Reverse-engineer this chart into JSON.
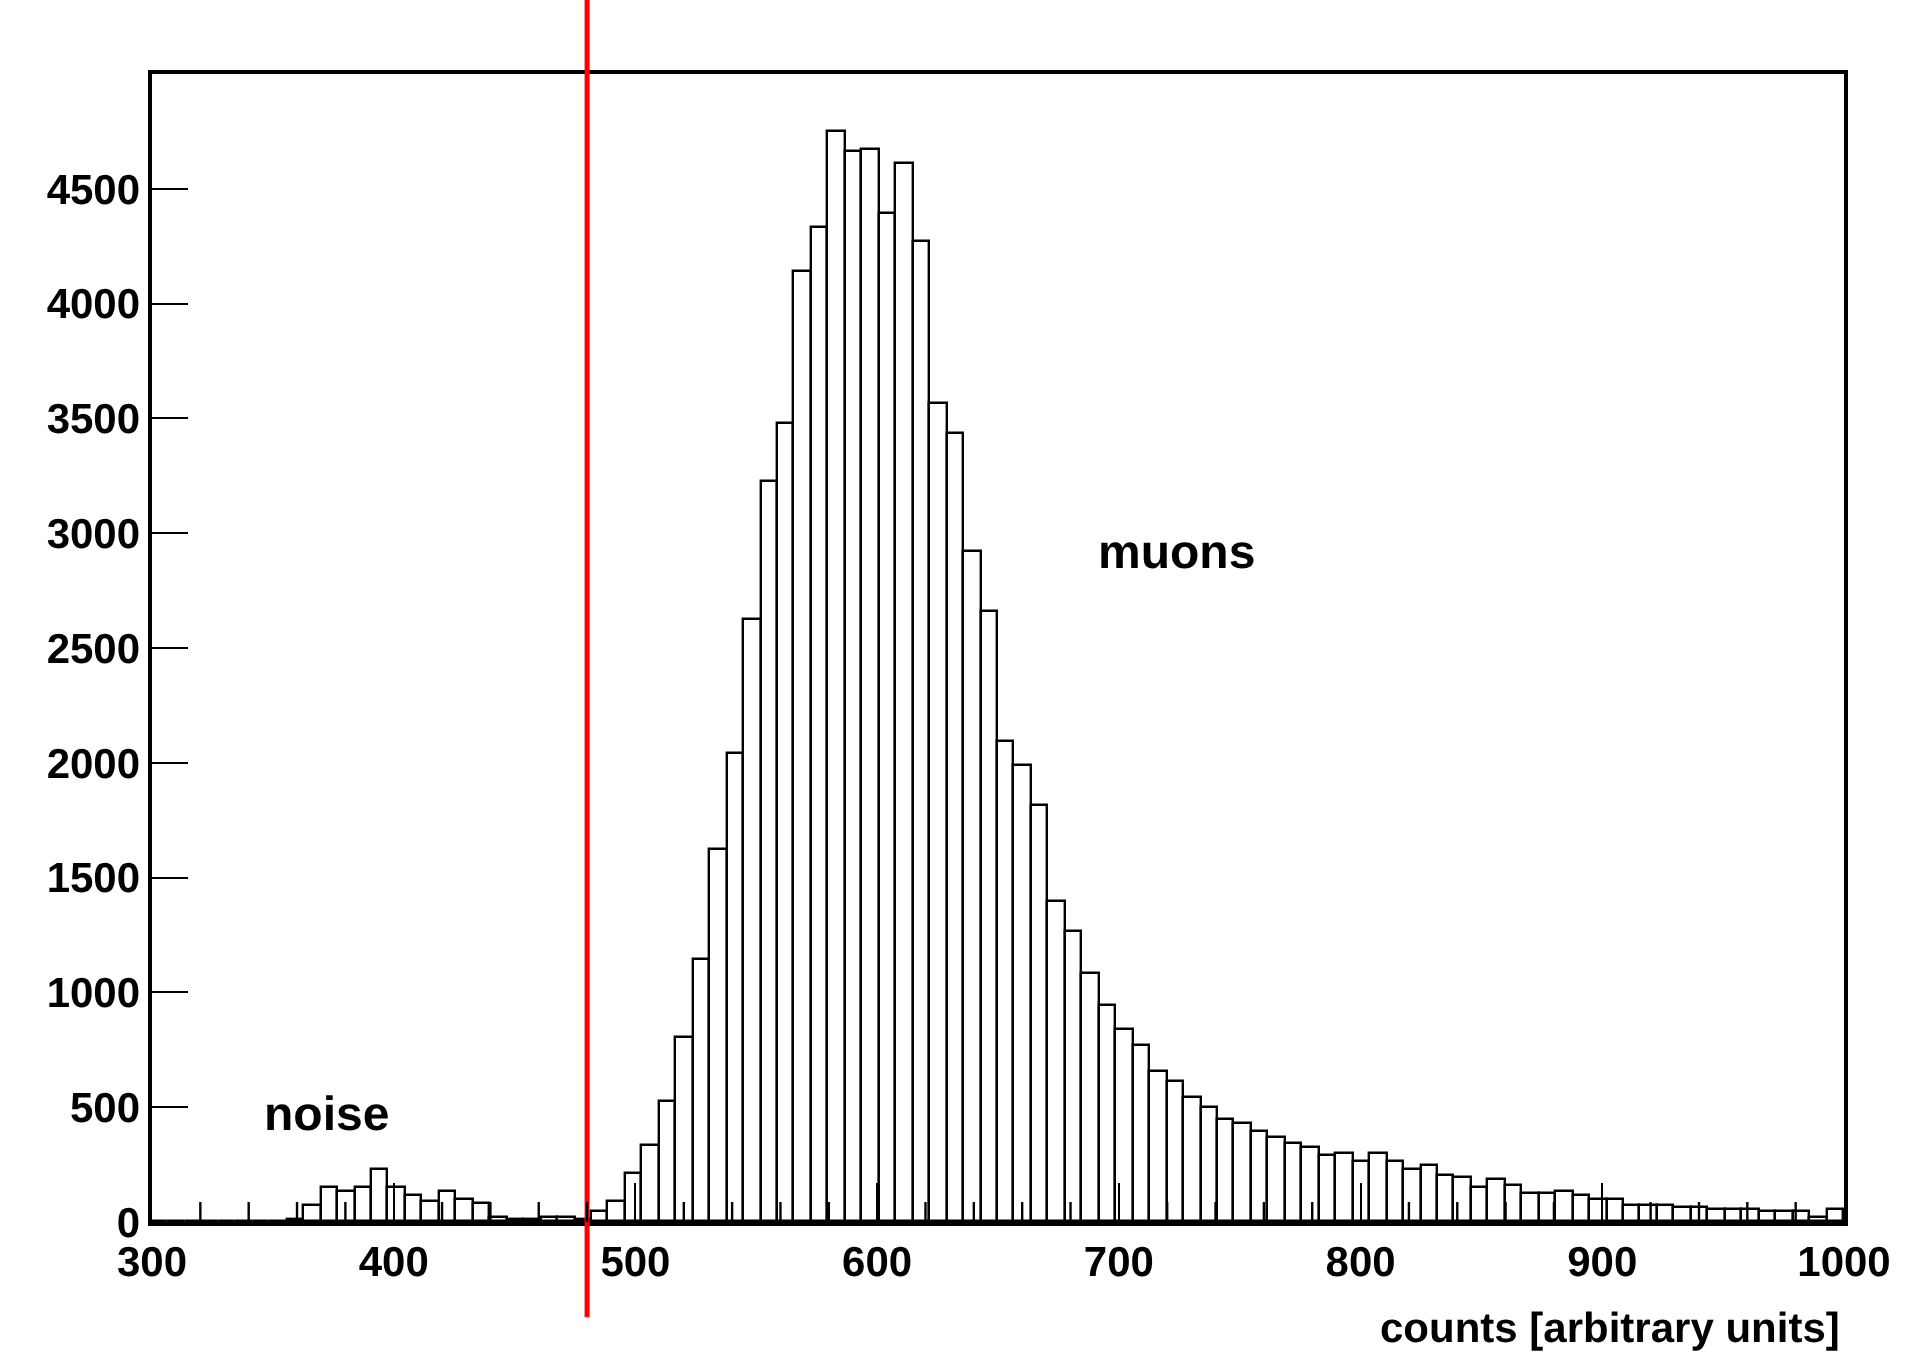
{
  "chart_data": {
    "type": "histogram",
    "xlabel": "counts [arbitrary units]",
    "bins": [
      300,
      307,
      314,
      321,
      328,
      335,
      342,
      349,
      356,
      363,
      370,
      377,
      384,
      391,
      398,
      405,
      412,
      419,
      426,
      433,
      440,
      447,
      454,
      461,
      468,
      475,
      482,
      489,
      496,
      503,
      510,
      517,
      524,
      531,
      538,
      545,
      552,
      559,
      566,
      573,
      580,
      587,
      594,
      601,
      608,
      615,
      622,
      629,
      636,
      643,
      650,
      657,
      664,
      671,
      678,
      685,
      692,
      699,
      706,
      713,
      720,
      727,
      734,
      741,
      748,
      755,
      762,
      769,
      776,
      783,
      790,
      797,
      804,
      811,
      818,
      825,
      832,
      839,
      846,
      853,
      860,
      867,
      874,
      881,
      888,
      895,
      902,
      909,
      916,
      923,
      930,
      937,
      944,
      951,
      958,
      965,
      972,
      979,
      986,
      993,
      1000
    ],
    "values": [
      0,
      0,
      0,
      0,
      0,
      0,
      0,
      0,
      10,
      70,
      150,
      130,
      150,
      230,
      150,
      110,
      90,
      130,
      100,
      80,
      20,
      10,
      10,
      20,
      20,
      10,
      40,
      90,
      210,
      330,
      520,
      800,
      1140,
      1620,
      2040,
      2620,
      3220,
      3480,
      4140,
      4330,
      4750,
      4660,
      4670,
      4390,
      4610,
      4270,
      3560,
      3430,
      2920,
      2660,
      2090,
      1990,
      1810,
      1390,
      1260,
      1080,
      940,
      840,
      770,
      650,
      610,
      540,
      500,
      440,
      430,
      390,
      370,
      340,
      320,
      290,
      300,
      260,
      300,
      260,
      230,
      240,
      200,
      190,
      150,
      180,
      160,
      120,
      120,
      130,
      110,
      100,
      100,
      70,
      70,
      70,
      60,
      60,
      50,
      50,
      50,
      40,
      40,
      40,
      20,
      50
    ],
    "color": "#000000",
    "xlim": [
      300,
      1000
    ],
    "ylim": [
      0,
      5000
    ],
    "xticks": [
      300,
      {
        "value": 320,
        "label": null
      },
      {
        "value": 340,
        "label": null
      },
      {
        "value": 360,
        "label": null
      },
      {
        "value": 380,
        "label": null
      },
      400,
      {
        "value": 420,
        "label": null
      },
      {
        "value": 440,
        "label": null
      },
      {
        "value": 460,
        "label": null
      },
      {
        "value": 480,
        "label": null
      },
      500,
      {
        "value": 520,
        "label": null
      },
      {
        "value": 540,
        "label": null
      },
      {
        "value": 560,
        "label": null
      },
      {
        "value": 580,
        "label": null
      },
      600,
      {
        "value": 620,
        "label": null
      },
      {
        "value": 640,
        "label": null
      },
      {
        "value": 660,
        "label": null
      },
      {
        "value": 680,
        "label": null
      },
      700,
      {
        "value": 720,
        "label": null
      },
      {
        "value": 740,
        "label": null
      },
      {
        "value": 760,
        "label": null
      },
      {
        "value": 780,
        "label": null
      },
      800,
      {
        "value": 820,
        "label": null
      },
      {
        "value": 840,
        "label": null
      },
      {
        "value": 860,
        "label": null
      },
      {
        "value": 880,
        "label": null
      },
      900,
      {
        "value": 920,
        "label": null
      },
      {
        "value": 940,
        "label": null
      },
      {
        "value": 960,
        "label": null
      },
      {
        "value": 980,
        "label": null
      },
      1000
    ],
    "yticks": [
      0,
      500,
      1000,
      1500,
      2000,
      2500,
      3000,
      3500,
      4000,
      4500
    ],
    "ref_lines": [
      {
        "axis": "x",
        "value": 480,
        "color": "#ff0000"
      }
    ],
    "annotations": [
      "noise",
      "muons"
    ]
  }
}
